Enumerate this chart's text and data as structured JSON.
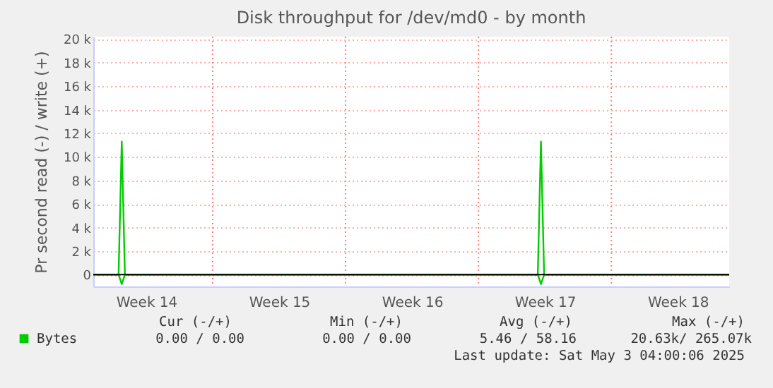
{
  "chart_data": {
    "type": "line",
    "title": "Disk throughput for /dev/md0 - by month",
    "ylabel": "Pr second read (-) / write (+)",
    "xlim": [
      "2025-03-31T17:00",
      "2025-05-04T05:00"
    ],
    "xticks": [
      {
        "value": "2025-04-03T12:00",
        "label": "Week 14"
      },
      {
        "value": "2025-04-10T12:00",
        "label": "Week 15"
      },
      {
        "value": "2025-04-17T12:00",
        "label": "Week 16"
      },
      {
        "value": "2025-04-24T12:00",
        "label": "Week 17"
      },
      {
        "value": "2025-05-01T12:00",
        "label": "Week 18"
      }
    ],
    "ylim": [
      -1000,
      20200
    ],
    "yticks": [
      0,
      {
        "value": 2000,
        "label": "2 k"
      },
      {
        "value": 4000,
        "label": "4 k"
      },
      {
        "value": 6000,
        "label": "6 k"
      },
      {
        "value": 8000,
        "label": "8 k"
      },
      {
        "value": 10000,
        "label": "10 k"
      },
      {
        "value": 12000,
        "label": "12 k"
      },
      {
        "value": 14000,
        "label": "14 k"
      },
      {
        "value": 16000,
        "label": "16 k"
      },
      {
        "value": 18000,
        "label": "18 k"
      },
      {
        "value": 20000,
        "label": "20 k"
      }
    ],
    "grid": "y",
    "legend": "bottom left",
    "marker": "none",
    "line_style": "solid",
    "series": [
      {
        "name": "Bytes",
        "color": "#00cc00",
        "x": [
          "2025-03-31T17:00",
          "2025-04-02T01:00",
          "2025-04-02T05:00",
          "2025-04-02T09:00",
          "2025-04-24T03:00",
          "2025-04-24T07:00",
          "2025-04-24T11:00",
          "2025-05-04T05:00"
        ],
        "values": [
          0,
          0,
          11300,
          0,
          0,
          11300,
          0,
          0
        ]
      },
      {
        "color": "#00cc00",
        "x": [
          "2025-03-31T17:00",
          "2025-04-02T01:00",
          "2025-04-02T05:00",
          "2025-04-02T09:00",
          "2025-04-24T03:00",
          "2025-04-24T07:00",
          "2025-04-24T11:00",
          "2025-05-04T05:00"
        ],
        "values": [
          0,
          0,
          -800,
          0,
          0,
          -800,
          0,
          0
        ]
      }
    ],
    "ref_lines": [
      {
        "axis": "x",
        "value": "2025-04-07",
        "color": "#ff8080",
        "line_style": "dotted"
      },
      {
        "axis": "x",
        "value": "2025-04-14",
        "color": "#ff8080",
        "line_style": "dotted"
      },
      {
        "axis": "x",
        "value": "2025-04-21",
        "color": "#ff8080",
        "line_style": "dotted"
      },
      {
        "axis": "x",
        "value": "2025-04-28",
        "color": "#ff8080",
        "line_style": "dotted"
      },
      {
        "axis": "y",
        "value": 0,
        "color": "#000000",
        "line_style": "solid"
      }
    ],
    "annotations": [
      "Cur (-/+)",
      "Min (-/+)",
      "Avg (-/+)",
      "Max (-/+)",
      "0.00 /   0.00",
      "0.00 /   0.00",
      "5.46 /  58.16",
      "20.63k/ 265.07k",
      "Last update: Sat May  3 04:00:06 2025"
    ]
  }
}
